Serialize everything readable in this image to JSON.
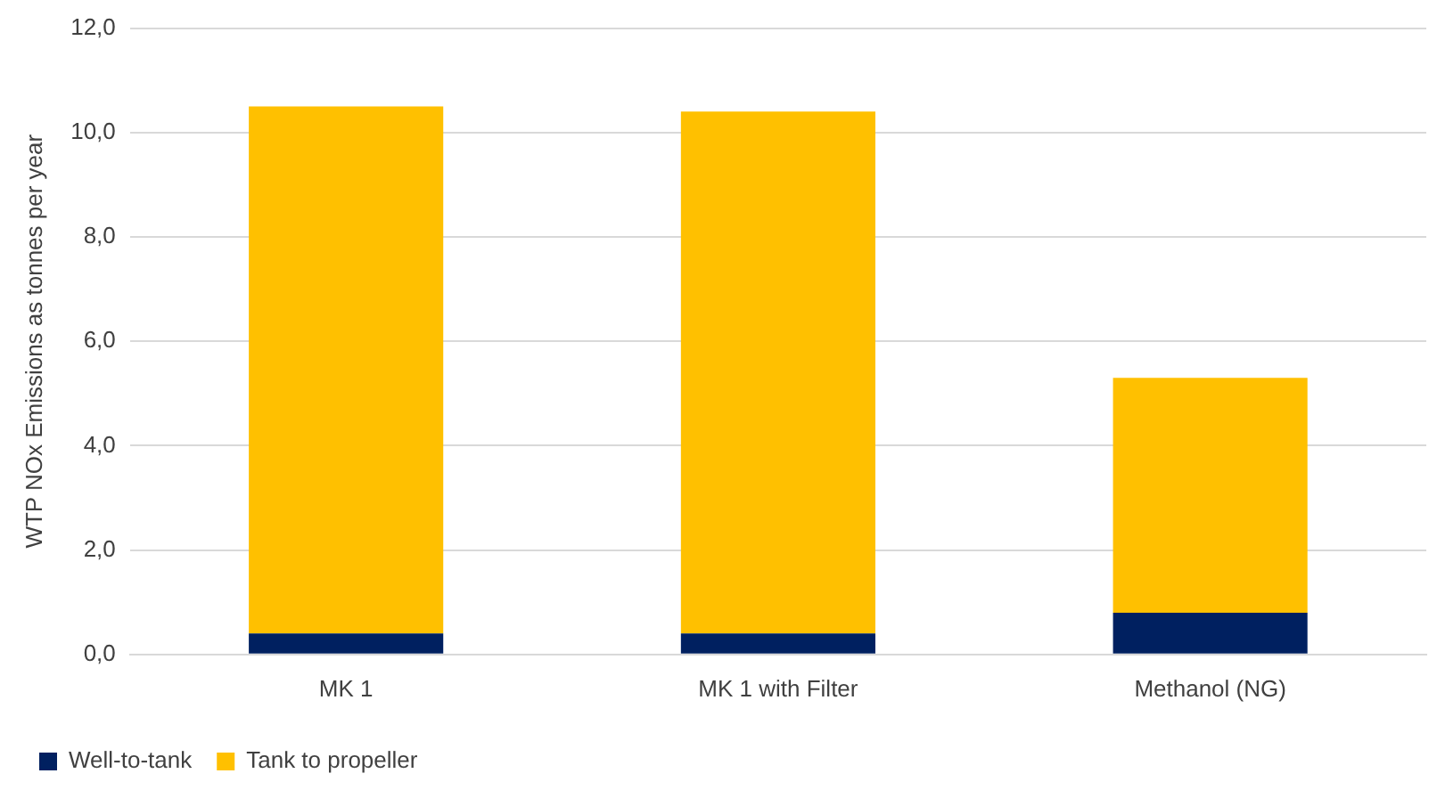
{
  "chart_data": {
    "type": "bar",
    "stacked": true,
    "ylabel": "WTP NOx Emissions as tonnes per year",
    "categories": [
      "MK 1",
      "MK 1 with Filter",
      "Methanol (NG)"
    ],
    "series": [
      {
        "name": "Well-to-tank",
        "color": "#002060",
        "values": [
          0.4,
          0.4,
          0.8
        ]
      },
      {
        "name": "Tank to propeller",
        "color": "#ffc000",
        "values": [
          10.1,
          10.0,
          4.5
        ]
      }
    ],
    "ylim": [
      0,
      12
    ],
    "yticks": [
      {
        "value": 0,
        "label": "0,0"
      },
      {
        "value": 2,
        "label": "2,0"
      },
      {
        "value": 4,
        "label": "4,0"
      },
      {
        "value": 6,
        "label": "6,0"
      },
      {
        "value": 8,
        "label": "8,0"
      },
      {
        "value": 10,
        "label": "10,0"
      },
      {
        "value": 12,
        "label": "12,0"
      }
    ],
    "grid": "y",
    "legend": "bottom left"
  }
}
